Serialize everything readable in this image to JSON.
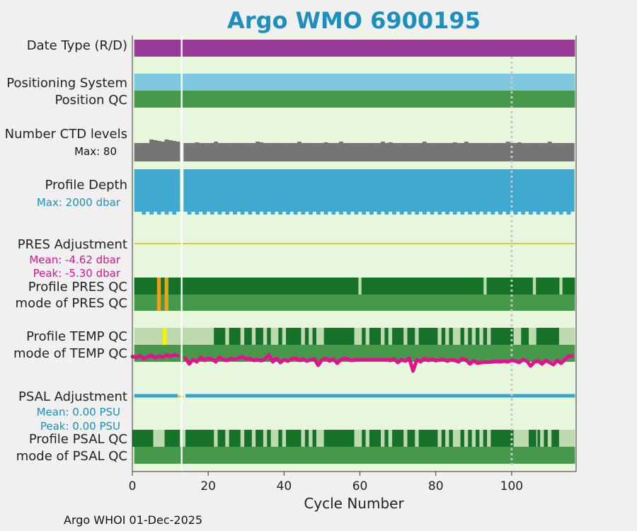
{
  "title": "Argo WMO 6900195",
  "footer": "Argo WHOI 01-Dec-2025",
  "colors": {
    "plot_bg": "#e6f7de",
    "date_type": "#9a3b9a",
    "positioning": "#80c8e0",
    "qc_good": "#167229",
    "qc_mode": "#46984a",
    "qc_light": "#bcdaae",
    "ctd": "#757575",
    "depth": "#41a9cf",
    "pres_adj": "#f0c040",
    "pres_flag": "#e8a020",
    "temp_flag": "#f4f400",
    "temp_line": "#e6108e",
    "psal_adj": "#3aa5cc",
    "adj_text_pink": "#e6108e",
    "adj_text_blue": "#1a8fc0",
    "gap": "#ffffff",
    "vline": "#c8c8c8"
  },
  "rows": {
    "date_type": "Date Type (R/D)",
    "positioning": "Positioning System",
    "position_qc": "Position QC",
    "ctd_levels": "Number CTD levels",
    "ctd_max": "Max: 80",
    "profile_depth": "Profile Depth",
    "depth_max": "Max: 2000 dbar",
    "pres_adj": "PRES Adjustment",
    "pres_mean": "Mean: -4.62 dbar",
    "pres_peak": "Peak: -5.30 dbar",
    "profile_pres_qc": "Profile PRES QC",
    "mode_pres_qc": "mode of PRES QC",
    "profile_temp_qc": "Profile TEMP QC",
    "mode_temp_qc": "mode of TEMP QC",
    "psal_adj": "PSAL Adjustment",
    "psal_mean": "Mean: 0.00 PSU",
    "psal_peak": "Peak: 0.00 PSU",
    "profile_psal_qc": "Profile PSAL QC",
    "mode_psal_qc": "mode of PSAL QC"
  },
  "chart_data": {
    "type": "table",
    "xlabel": "Cycle Number",
    "xlim": [
      0,
      117
    ],
    "xticks": [
      0,
      20,
      40,
      60,
      80,
      100
    ],
    "missing_cycles": [
      13
    ],
    "reference_cycle": 100,
    "ctd_max": 80,
    "depth_max_dbar": 2000,
    "pres_adjustment": {
      "mean": -4.62,
      "peak": -5.3
    },
    "psal_adjustment": {
      "mean": 0.0,
      "peak": 0.0
    },
    "profile_pres_qc_gaps": [
      60,
      93,
      106,
      113
    ],
    "profile_pres_qc_flags": [
      7,
      9
    ],
    "profile_temp_qc_good_segments": [
      [
        21.5,
        24.5
      ],
      [
        25.5,
        28.5
      ],
      [
        29.5,
        31.5
      ],
      [
        32.5,
        34.5
      ],
      [
        35.5,
        36.5
      ],
      [
        38.5,
        39.5
      ],
      [
        40.5,
        44.5
      ],
      [
        45.5,
        46.5
      ],
      [
        47.5,
        48.5
      ],
      [
        50.5,
        58.5
      ],
      [
        60.5,
        61.5
      ],
      [
        62.5,
        65.5
      ],
      [
        66.5,
        67.5
      ],
      [
        68.5,
        71.5
      ],
      [
        72.5,
        74.5
      ],
      [
        75.5,
        80.5
      ],
      [
        81.5,
        82.5
      ],
      [
        83.5,
        84.5
      ],
      [
        86.5,
        87.5
      ],
      [
        88.5,
        89.5
      ],
      [
        90.5,
        91.5
      ],
      [
        92.5,
        93.5
      ],
      [
        94.5,
        100.5
      ],
      [
        102.5,
        104.5
      ],
      [
        106.5,
        112.5
      ]
    ],
    "profile_temp_qc_flags": [
      8.5
    ],
    "profile_psal_qc_good_segments": [
      [
        0,
        5.5
      ],
      [
        8.5,
        12.5
      ],
      [
        14,
        21.5
      ],
      [
        22.5,
        24.5
      ],
      [
        25.5,
        28.5
      ],
      [
        29.5,
        31.5
      ],
      [
        32.5,
        34.5
      ],
      [
        35.5,
        36.5
      ],
      [
        38.5,
        39.5
      ],
      [
        40.5,
        44.5
      ],
      [
        45.5,
        46.5
      ],
      [
        47.5,
        48.5
      ],
      [
        50.5,
        58.5
      ],
      [
        60.5,
        61.5
      ],
      [
        62.5,
        65.5
      ],
      [
        66.5,
        67.5
      ],
      [
        68.5,
        71.5
      ],
      [
        72.5,
        74.5
      ],
      [
        75.5,
        80.5
      ],
      [
        81.5,
        82.5
      ],
      [
        83.5,
        84.5
      ],
      [
        86.5,
        87.5
      ],
      [
        88.5,
        89.5
      ],
      [
        90.5,
        91.5
      ],
      [
        92.5,
        93.5
      ],
      [
        94.5,
        100.5
      ],
      [
        104.5,
        106.5
      ],
      [
        106.8,
        107.5
      ],
      [
        108.5,
        109.5
      ],
      [
        110.5,
        112.5
      ]
    ],
    "temp_adjustment_trace": [
      [
        0,
        0.3
      ],
      [
        1,
        0.0
      ],
      [
        2,
        0.5
      ],
      [
        3,
        -0.3
      ],
      [
        4,
        0.2
      ],
      [
        5,
        0.6
      ],
      [
        6,
        -0.1
      ],
      [
        7,
        0.4
      ],
      [
        8,
        0.1
      ],
      [
        9,
        0.7
      ],
      [
        10,
        0.3
      ],
      [
        11,
        0.8
      ],
      [
        12,
        0.5
      ],
      [
        14,
        -0.2
      ],
      [
        15,
        -1.8
      ],
      [
        16,
        -0.6
      ],
      [
        17,
        -1.2
      ],
      [
        18,
        0.0
      ],
      [
        19,
        -0.8
      ],
      [
        20,
        -0.2
      ],
      [
        21,
        -0.5
      ],
      [
        22,
        -1.2
      ],
      [
        23,
        0.1
      ],
      [
        24,
        -0.6
      ],
      [
        25,
        -0.8
      ],
      [
        26,
        -0.3
      ],
      [
        27,
        -0.6
      ],
      [
        28,
        -0.1
      ],
      [
        29,
        0.2
      ],
      [
        30,
        -0.4
      ],
      [
        31,
        -0.2
      ],
      [
        32,
        -0.8
      ],
      [
        33,
        -0.6
      ],
      [
        34,
        -0.9
      ],
      [
        35,
        -0.4
      ],
      [
        36,
        0.8
      ],
      [
        37,
        -1.2
      ],
      [
        38,
        -0.2
      ],
      [
        39,
        -1.4
      ],
      [
        40,
        -0.6
      ],
      [
        41,
        -1.0
      ],
      [
        42,
        -0.4
      ],
      [
        43,
        -0.2
      ],
      [
        44,
        -0.8
      ],
      [
        45,
        -0.4
      ],
      [
        46,
        -1.0
      ],
      [
        47,
        -0.6
      ],
      [
        48,
        -0.4
      ],
      [
        49,
        -2.2
      ],
      [
        50,
        -0.6
      ],
      [
        51,
        -0.2
      ],
      [
        52,
        -1.0
      ],
      [
        53,
        -0.4
      ],
      [
        54,
        -1.6
      ],
      [
        55,
        -0.6
      ],
      [
        56,
        -0.2
      ],
      [
        57,
        -0.6
      ],
      [
        58,
        -0.8
      ],
      [
        59,
        -0.6
      ],
      [
        60,
        -0.6
      ],
      [
        61,
        -0.6
      ],
      [
        62,
        -0.6
      ],
      [
        63,
        -0.6
      ],
      [
        64,
        -0.6
      ],
      [
        65,
        -0.6
      ],
      [
        66,
        -0.6
      ],
      [
        67,
        -0.6
      ],
      [
        68,
        -0.8
      ],
      [
        69,
        -0.4
      ],
      [
        70,
        -1.4
      ],
      [
        71,
        -0.6
      ],
      [
        72,
        -1.0
      ],
      [
        73,
        -0.2
      ],
      [
        74,
        -3.8
      ],
      [
        75,
        -0.6
      ],
      [
        76,
        -1.2
      ],
      [
        77,
        -0.3
      ],
      [
        78,
        -0.8
      ],
      [
        79,
        -0.4
      ],
      [
        80,
        -0.9
      ],
      [
        81,
        -0.6
      ],
      [
        82,
        -0.5
      ],
      [
        83,
        -1.0
      ],
      [
        84,
        -0.6
      ],
      [
        85,
        -0.8
      ],
      [
        86,
        -1.2
      ],
      [
        87,
        -0.3
      ],
      [
        88,
        -0.7
      ],
      [
        89,
        -1.8
      ],
      [
        90,
        -0.9
      ],
      [
        91,
        -1.6
      ],
      [
        92,
        -1.4
      ],
      [
        93,
        -1.3
      ],
      [
        94,
        -1.3
      ],
      [
        95,
        -1.2
      ],
      [
        96,
        -1.1
      ],
      [
        97,
        -1.2
      ],
      [
        98,
        -1.0
      ],
      [
        99,
        -1.2
      ],
      [
        100,
        -0.8
      ],
      [
        101,
        -1.0
      ],
      [
        102,
        -1.4
      ],
      [
        103,
        -0.6
      ],
      [
        104,
        -1.0
      ],
      [
        105,
        -2.4
      ],
      [
        106,
        -1.2
      ],
      [
        107,
        -1.0
      ],
      [
        108,
        -1.8
      ],
      [
        109,
        -0.8
      ],
      [
        110,
        -1.4
      ],
      [
        111,
        -2.0
      ],
      [
        112,
        -0.8
      ],
      [
        113,
        -1.6
      ],
      [
        114,
        -0.6
      ],
      [
        115,
        0.4
      ],
      [
        116,
        0.4
      ]
    ]
  }
}
